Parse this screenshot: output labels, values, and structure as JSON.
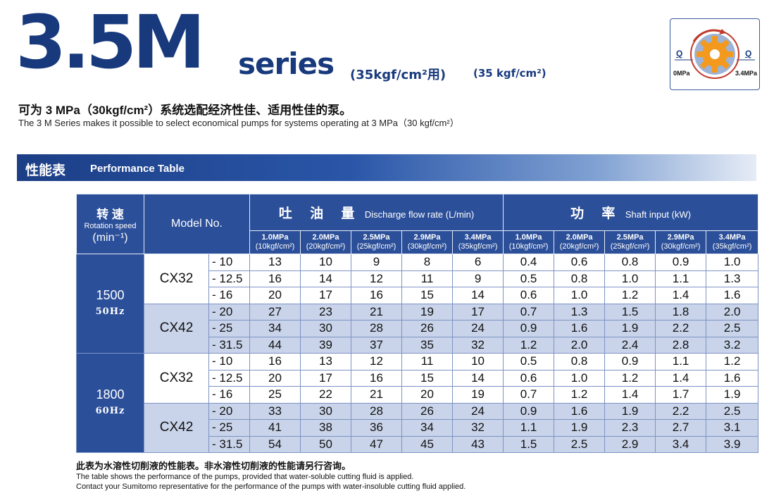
{
  "header": {
    "model_big": "3.5M",
    "series": "series",
    "pressure_zh": "(35kgf/cm²用)",
    "pressure_en": "(35 kgf/cm²)"
  },
  "icon": {
    "name": "gear-pressure-icon",
    "q_left": "Q",
    "q_right": "Q",
    "label_left": "0MPa",
    "label_right": "3.4MPa",
    "colors": {
      "gear_outer": "#9db3d8",
      "gear_inner": "#f39a1e",
      "arrow": "#c0392b"
    }
  },
  "subtitle": {
    "zh": "可为 3 MPa（30kgf/cm²）系统选配经济性佳、适用性佳的泵。",
    "en": "The 3 M Series makes it possible to select economical pumps for systems operating at 3 MPa（30 kgf/cm²）"
  },
  "section": {
    "zh": "性能表",
    "en": "Performance Table"
  },
  "table": {
    "speed_header_zh": "转 速",
    "speed_header_en": "Rotation speed",
    "speed_header_unit": "(min⁻¹)",
    "model_header": "Model No.",
    "discharge_zh": "吐 油 量",
    "discharge_en": "Discharge flow rate (L/min)",
    "power_zh": "功 率",
    "power_en": "Shaft input (kW)",
    "pressures": [
      {
        "mpa": "1.0MPa",
        "kgf": "(10kgf/cm²)"
      },
      {
        "mpa": "2.0MPa",
        "kgf": "(20kgf/cm²)"
      },
      {
        "mpa": "2.5MPa",
        "kgf": "(25kgf/cm²)"
      },
      {
        "mpa": "2.9MPa",
        "kgf": "(30kgf/cm²)"
      },
      {
        "mpa": "3.4MPa",
        "kgf": "(35kgf/cm²)"
      }
    ],
    "groups": [
      {
        "speed": "1500",
        "hz": "50Hz",
        "models": [
          {
            "name": "CX32",
            "rows": [
              {
                "disp": "- 10",
                "flow": [
                  "13",
                  "10",
                  "9",
                  "8",
                  "6"
                ],
                "power": [
                  "0.4",
                  "0.6",
                  "0.8",
                  "0.9",
                  "1.0"
                ]
              },
              {
                "disp": "- 12.5",
                "flow": [
                  "16",
                  "14",
                  "12",
                  "11",
                  "9"
                ],
                "power": [
                  "0.5",
                  "0.8",
                  "1.0",
                  "1.1",
                  "1.3"
                ]
              },
              {
                "disp": "- 16",
                "flow": [
                  "20",
                  "17",
                  "16",
                  "15",
                  "14"
                ],
                "power": [
                  "0.6",
                  "1.0",
                  "1.2",
                  "1.4",
                  "1.6"
                ]
              }
            ]
          },
          {
            "name": "CX42",
            "rows": [
              {
                "disp": "- 20",
                "flow": [
                  "27",
                  "23",
                  "21",
                  "19",
                  "17"
                ],
                "power": [
                  "0.7",
                  "1.3",
                  "1.5",
                  "1.8",
                  "2.0"
                ]
              },
              {
                "disp": "- 25",
                "flow": [
                  "34",
                  "30",
                  "28",
                  "26",
                  "24"
                ],
                "power": [
                  "0.9",
                  "1.6",
                  "1.9",
                  "2.2",
                  "2.5"
                ]
              },
              {
                "disp": "- 31.5",
                "flow": [
                  "44",
                  "39",
                  "37",
                  "35",
                  "32"
                ],
                "power": [
                  "1.2",
                  "2.0",
                  "2.4",
                  "2.8",
                  "3.2"
                ]
              }
            ]
          }
        ]
      },
      {
        "speed": "1800",
        "hz": "60Hz",
        "models": [
          {
            "name": "CX32",
            "rows": [
              {
                "disp": "- 10",
                "flow": [
                  "16",
                  "13",
                  "12",
                  "11",
                  "10"
                ],
                "power": [
                  "0.5",
                  "0.8",
                  "0.9",
                  "1.1",
                  "1.2"
                ]
              },
              {
                "disp": "- 12.5",
                "flow": [
                  "20",
                  "17",
                  "16",
                  "15",
                  "14"
                ],
                "power": [
                  "0.6",
                  "1.0",
                  "1.2",
                  "1.4",
                  "1.6"
                ]
              },
              {
                "disp": "- 16",
                "flow": [
                  "25",
                  "22",
                  "21",
                  "20",
                  "19"
                ],
                "power": [
                  "0.7",
                  "1.2",
                  "1.4",
                  "1.7",
                  "1.9"
                ]
              }
            ]
          },
          {
            "name": "CX42",
            "rows": [
              {
                "disp": "- 20",
                "flow": [
                  "33",
                  "30",
                  "28",
                  "26",
                  "24"
                ],
                "power": [
                  "0.9",
                  "1.6",
                  "1.9",
                  "2.2",
                  "2.5"
                ]
              },
              {
                "disp": "- 25",
                "flow": [
                  "41",
                  "38",
                  "36",
                  "34",
                  "32"
                ],
                "power": [
                  "1.1",
                  "1.9",
                  "2.3",
                  "2.7",
                  "3.1"
                ]
              },
              {
                "disp": "- 31.5",
                "flow": [
                  "54",
                  "50",
                  "47",
                  "45",
                  "43"
                ],
                "power": [
                  "1.5",
                  "2.5",
                  "2.9",
                  "3.4",
                  "3.9"
                ]
              }
            ]
          }
        ]
      }
    ]
  },
  "footer": {
    "zh": "此表为水溶性切削液的性能表。非水溶性切削液的性能请另行咨询。",
    "en1": "The table shows the performance of the pumps, provided that water-soluble cutting fluid is applied.",
    "en2": "Contact your Sumitomo representative for the performance of the pumps with water-insoluble cutting fluid applied."
  }
}
